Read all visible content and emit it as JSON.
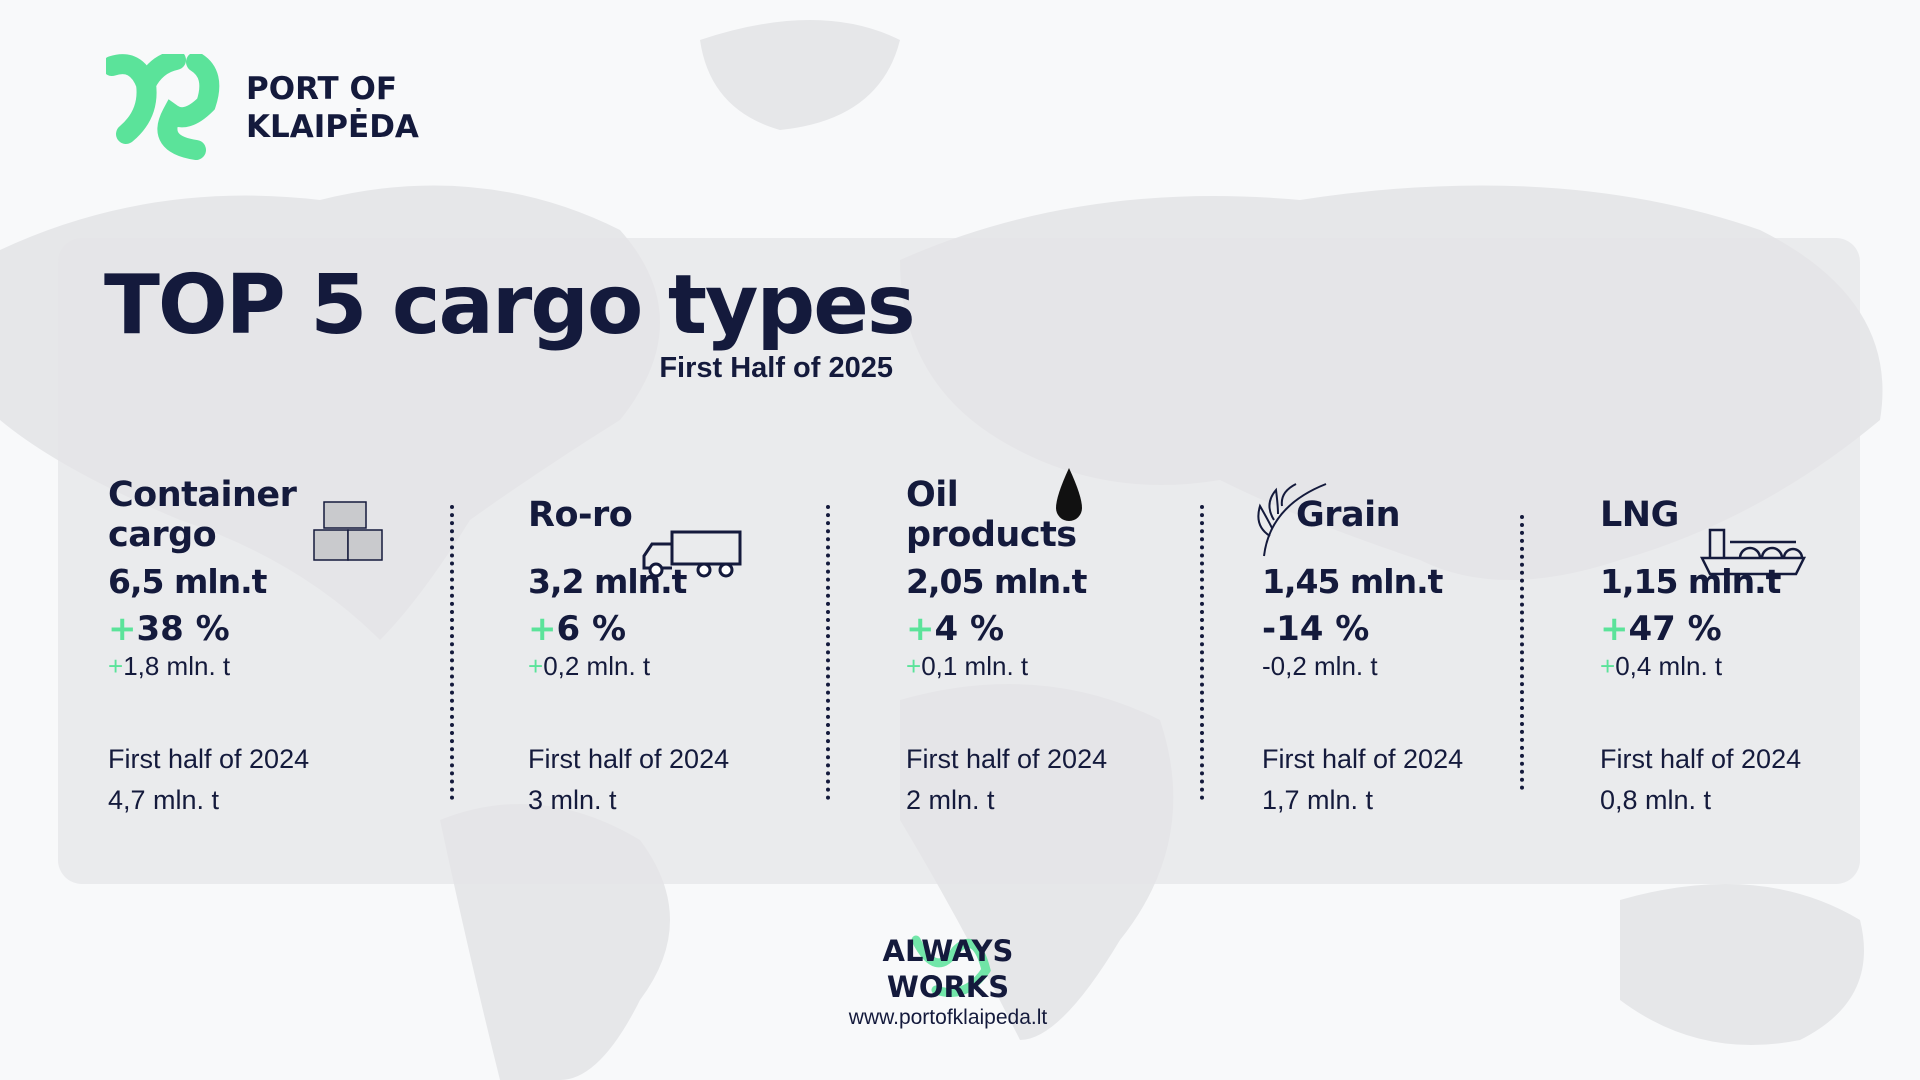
{
  "header": {
    "brand": "PORT OF KLAIPĖDA",
    "title": "TOP 5 cargo types",
    "subtitle": "First Half of 2025"
  },
  "items": [
    {
      "name": "Container cargo",
      "volume": "6,5 mln.t",
      "change": "+38 %",
      "change_abs": "+1,8 mln. t",
      "prev_label": "First half of 2024",
      "prev_value": "4,7 mln. t"
    },
    {
      "name": "Ro-ro",
      "volume": "3,2 mln.t",
      "change": "+6 %",
      "change_abs": "+0,2 mln. t",
      "prev_label": "First half of 2024",
      "prev_value": "3 mln. t"
    },
    {
      "name": "Oil products",
      "volume": "2,05 mln.t",
      "change": "+4 %",
      "change_abs": "+0,1 mln. t",
      "prev_label": "First half of 2024",
      "prev_value": "2 mln. t"
    },
    {
      "name": "Grain",
      "volume": "1,45 mln.t",
      "change": "-14 %",
      "change_abs": "-0,2 mln. t",
      "prev_label": "First half of 2024",
      "prev_value": "1,7 mln. t"
    },
    {
      "name": "LNG",
      "volume": "1,15 mln.t",
      "change": "+47 %",
      "change_abs": "+0,4 mln. t",
      "prev_label": "First half of 2024",
      "prev_value": "0,8 mln. t"
    }
  ],
  "footer": {
    "slogan": "ALWAYS WORKS",
    "url": "www.portofklaipeda.lt"
  }
}
